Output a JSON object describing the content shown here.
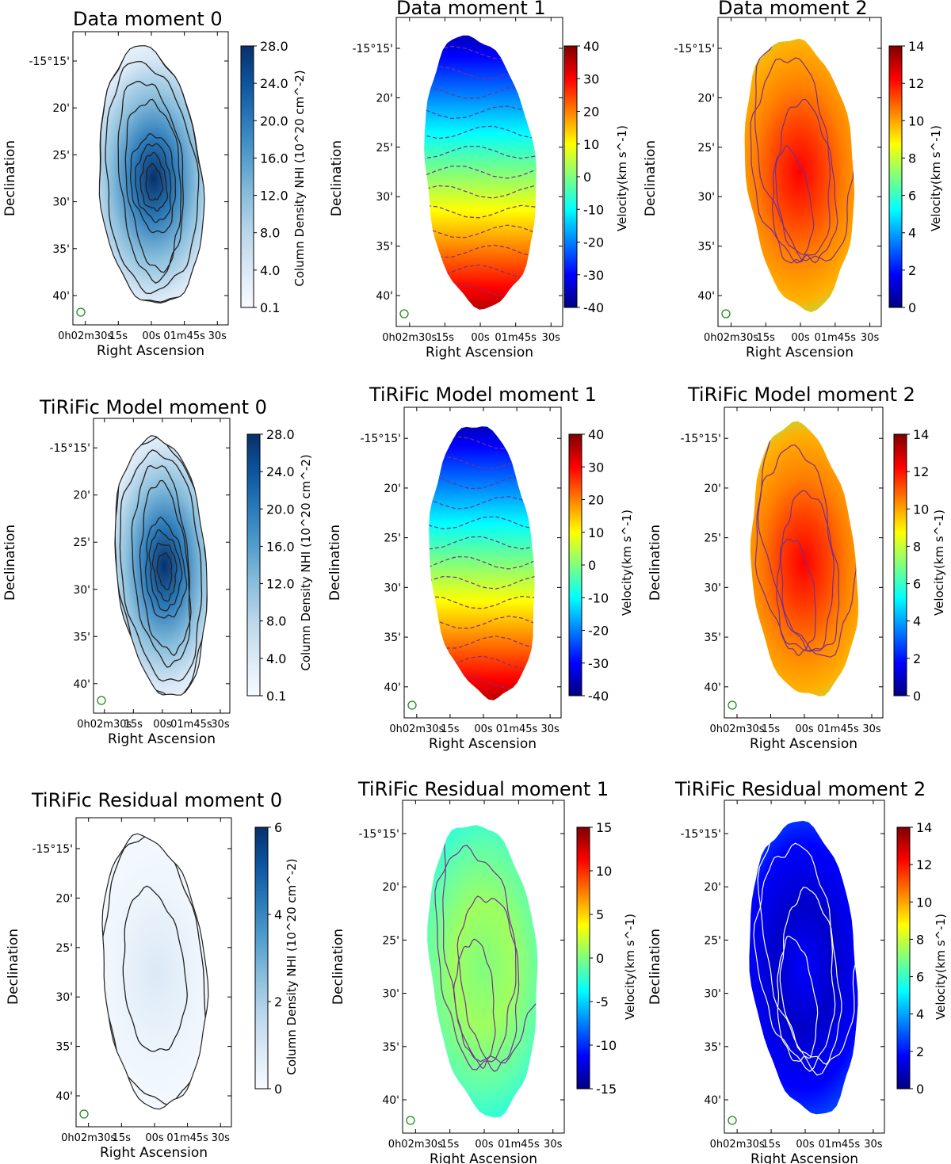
{
  "figure": {
    "ra_ticks": [
      "0h02m30s",
      "15s",
      "00s",
      "01m45s",
      "30s"
    ],
    "dec_ticks": [
      "-15°15'",
      "20'",
      "25'",
      "30'",
      "35'",
      "40'"
    ],
    "xlabel": "Right Ascension",
    "ylabel": "Declination"
  },
  "chart_data": [
    {
      "type": "heatmap",
      "title": "Data moment 0",
      "cmap": "Blues",
      "colorbar_label": "Column Density NHI (10^20 cm^-2)",
      "colorbar_ticks": [
        "0.1",
        "4.0",
        "8.0",
        "12.0",
        "16.0",
        "20.0",
        "24.0",
        "28.0"
      ],
      "contours": [
        0.1,
        4,
        8,
        12,
        16,
        20,
        24,
        28
      ],
      "contour_color": "#222222",
      "peak": 28
    },
    {
      "type": "heatmap",
      "title": "Data moment 1",
      "cmap": "jet",
      "colorbar_label": "Velocity(km s^-1)",
      "colorbar_ticks": [
        "-40",
        "-30",
        "-20",
        "-10",
        "0",
        "10",
        "20",
        "30",
        "40"
      ],
      "range": [
        -40,
        40
      ],
      "contours": "dashed isovelocity",
      "contour_color": "#7a2e8e"
    },
    {
      "type": "heatmap",
      "title": "Data  moment 2",
      "cmap": "jet",
      "colorbar_label": "Velocity(km s^-1)",
      "colorbar_ticks": [
        "0",
        "2",
        "4",
        "6",
        "8",
        "10",
        "12",
        "14"
      ],
      "range": [
        0,
        14
      ],
      "contour_color": "#7a2e8e"
    },
    {
      "type": "heatmap",
      "title": "TiRiFic Model moment 0",
      "cmap": "Blues",
      "colorbar_label": "Column Density NHI (10^20 cm^-2)",
      "colorbar_ticks": [
        "0.1",
        "4.0",
        "8.0",
        "12.0",
        "16.0",
        "20.0",
        "24.0",
        "28.0"
      ],
      "contours": [
        0.1,
        4,
        8,
        12,
        16,
        20,
        24,
        28
      ],
      "contour_color": "#222222",
      "peak": 28
    },
    {
      "type": "heatmap",
      "title": "TiRiFic Model moment 1",
      "cmap": "jet",
      "colorbar_label": "Velocity(km s^-1)",
      "colorbar_ticks": [
        "-40",
        "-30",
        "-20",
        "-10",
        "0",
        "10",
        "20",
        "30",
        "40"
      ],
      "range": [
        -40,
        40
      ],
      "contours": "dashed isovelocity",
      "contour_color": "#7a2e8e"
    },
    {
      "type": "heatmap",
      "title": "TiRiFic Model  moment 2",
      "cmap": "jet",
      "colorbar_label": "Velocity(km s^-1)",
      "colorbar_ticks": [
        "0",
        "2",
        "4",
        "6",
        "8",
        "10",
        "12",
        "14"
      ],
      "range": [
        0,
        14
      ],
      "contour_color": "#7a2e8e"
    },
    {
      "type": "heatmap",
      "title": "TiRiFic Residual moment 0",
      "cmap": "Blues",
      "colorbar_label": "Column Density NHI (10^20 cm^-2)",
      "colorbar_ticks": [
        "0",
        "2",
        "4",
        "6"
      ],
      "range": [
        0,
        6
      ],
      "contour_color": "#222222"
    },
    {
      "type": "heatmap",
      "title": "TiRiFic Residual moment 1",
      "cmap": "jet",
      "colorbar_label": "Velocity(km s^-1)",
      "colorbar_ticks": [
        "-15",
        "-10",
        "-5",
        "0",
        "5",
        "10",
        "15"
      ],
      "range": [
        -15,
        15
      ],
      "contour_color": "#7a2e8e"
    },
    {
      "type": "heatmap",
      "title": "TiRiFic Residual  moment 2",
      "cmap": "jet",
      "colorbar_label": "Velocity(km s^-1)",
      "colorbar_ticks": [
        "0",
        "2",
        "4",
        "6",
        "8",
        "10",
        "12",
        "14"
      ],
      "range": [
        0,
        14
      ],
      "contour_color": "#ffffff"
    }
  ]
}
